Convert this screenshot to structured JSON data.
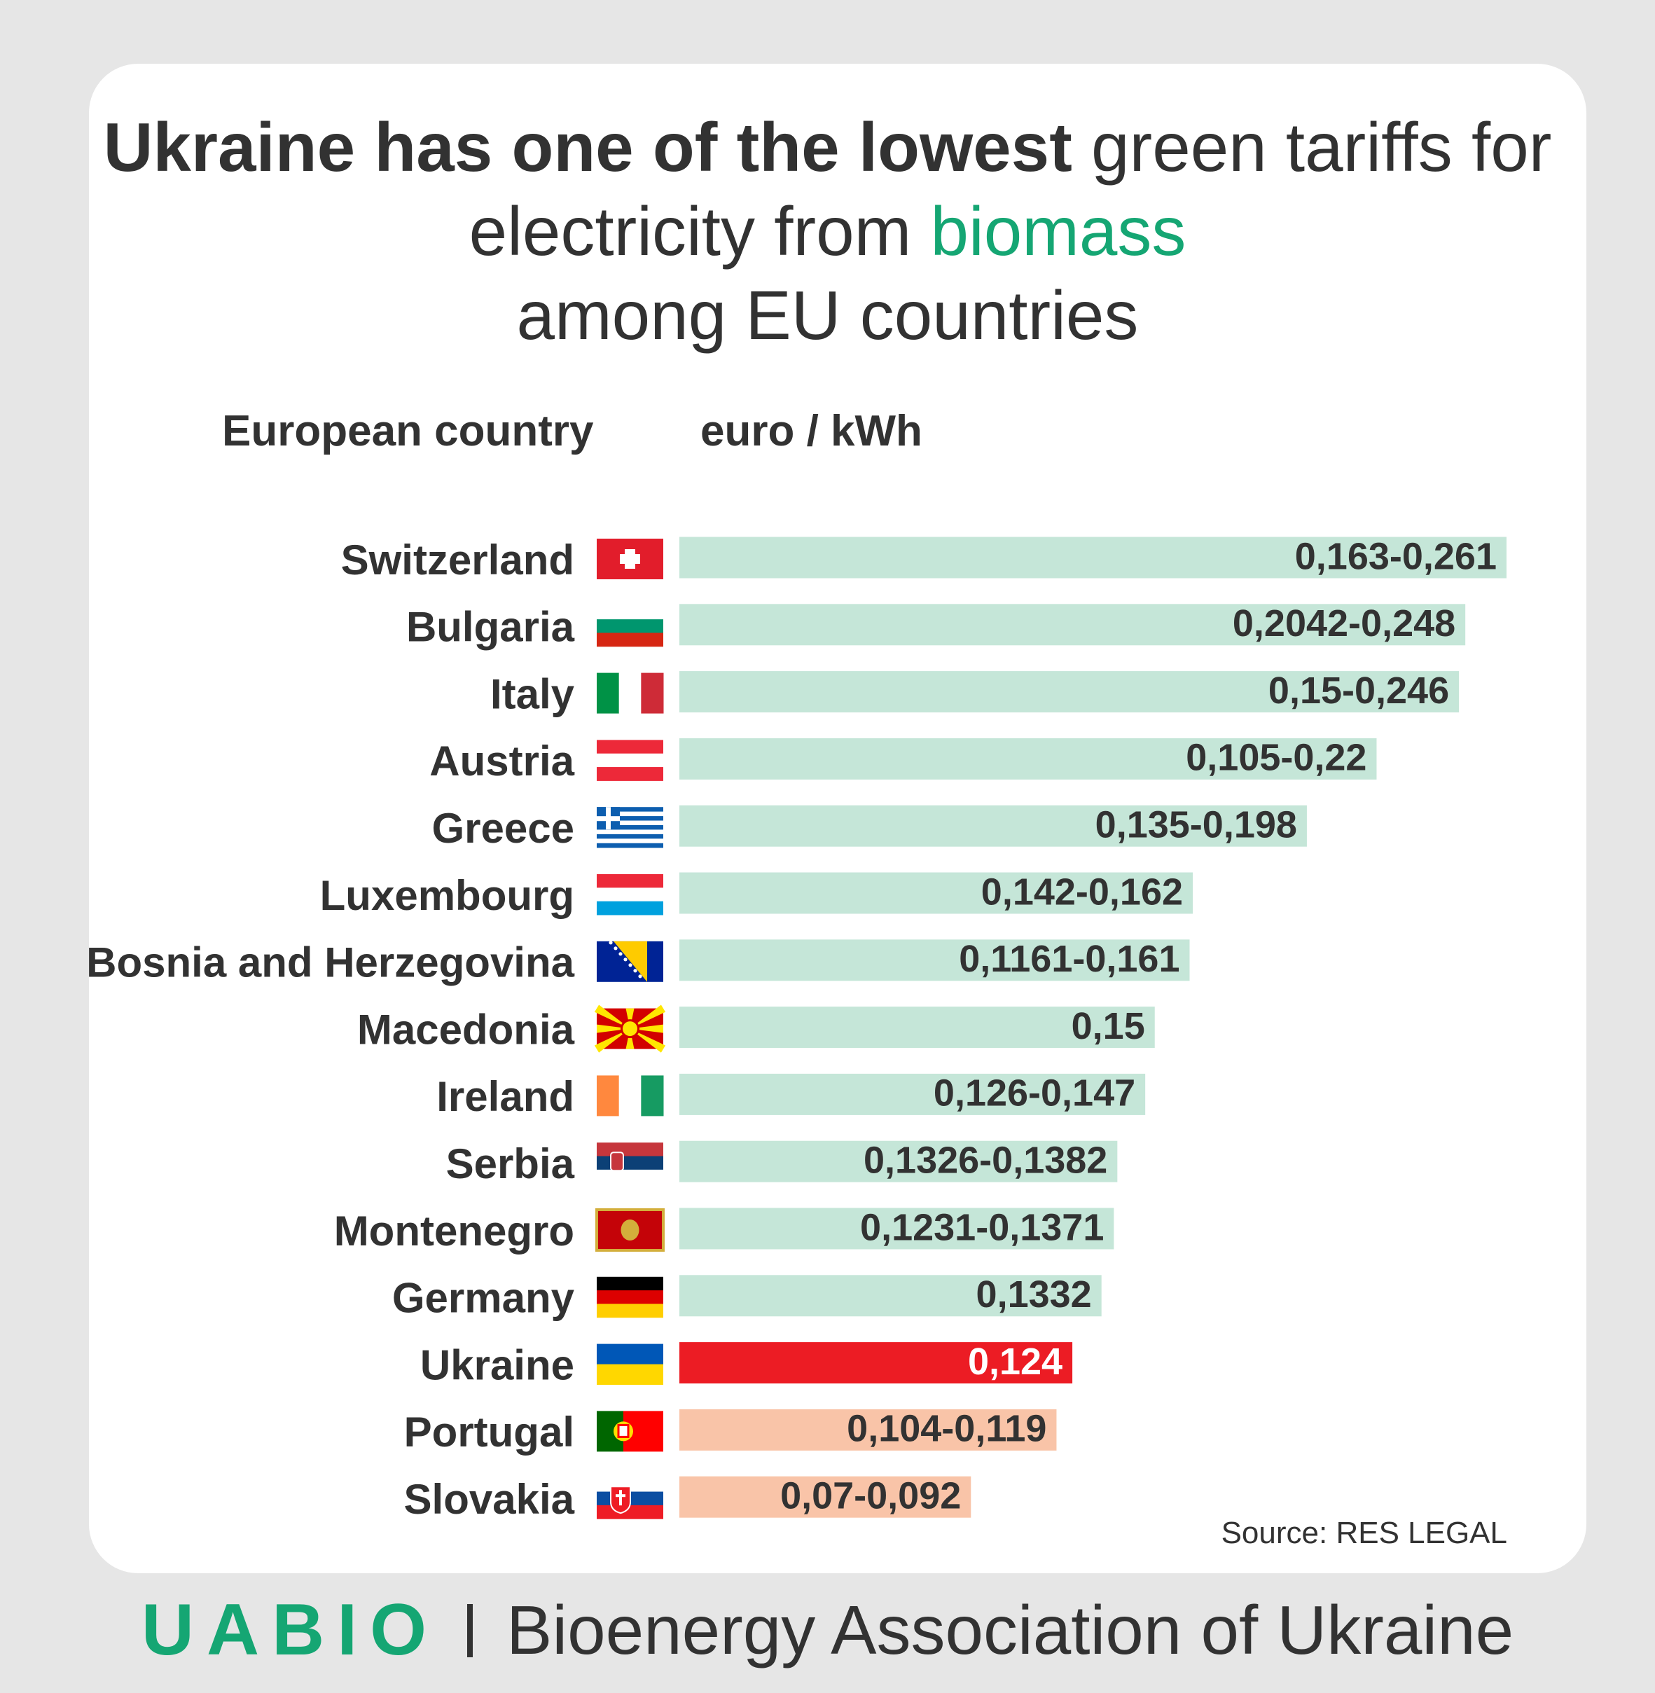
{
  "title": {
    "bold_part": "Ukraine has one of the lowest",
    "part2": " green tariffs for electricity from ",
    "highlight": "biomass",
    "part3": " among EU countries"
  },
  "columns": {
    "country": "European country",
    "unit": "euro / kWh"
  },
  "source": "Source: RES LEGAL",
  "footer": {
    "logo": "UABIO",
    "org": "Bioenergy Association of Ukraine"
  },
  "colors": {
    "bar_default": "#c5e6d8",
    "bar_highlight": "#ec1c24",
    "bar_lower": "#f9c4a8",
    "text": "#323232",
    "accent_green": "#15a673"
  },
  "chart_data": {
    "type": "bar",
    "orientation": "horizontal",
    "xlabel": "euro / kWh",
    "ylabel": "European country",
    "xlim": [
      0,
      0.261
    ],
    "grid": false,
    "categories": [
      "Switzerland",
      "Bulgaria",
      "Italy",
      "Austria",
      "Greece",
      "Luxembourg",
      "Bosnia and Herzegovina",
      "Macedonia",
      "Ireland",
      "Serbia",
      "Montenegro",
      "Germany",
      "Ukraine",
      "Portugal",
      "Slovakia"
    ],
    "values": [
      0.261,
      0.248,
      0.246,
      0.22,
      0.198,
      0.162,
      0.161,
      0.15,
      0.147,
      0.1382,
      0.1371,
      0.1332,
      0.124,
      0.119,
      0.092
    ],
    "labels": [
      "0,163-0,261",
      "0,2042-0,248",
      "0,15-0,246",
      "0,105-0,22",
      "0,135-0,198",
      "0,142-0,162",
      "0,1161-0,161",
      "0,15",
      "0,126-0,147",
      "0,1326-0,1382",
      "0,1231-0,1371",
      "0,1332",
      "0,124",
      "0,104-0,119",
      "0,07-0,092"
    ],
    "flags": [
      "switzerland-flag",
      "bulgaria-flag",
      "italy-flag",
      "austria-flag",
      "greece-flag",
      "luxembourg-flag",
      "bosnia-flag",
      "macedonia-flag",
      "ireland-flag",
      "serbia-flag",
      "montenegro-flag",
      "germany-flag",
      "ukraine-flag",
      "portugal-flag",
      "slovakia-flag"
    ],
    "bar_style": [
      "default",
      "default",
      "default",
      "default",
      "default",
      "default",
      "default",
      "default",
      "default",
      "default",
      "default",
      "default",
      "highlight",
      "lower",
      "lower"
    ]
  }
}
